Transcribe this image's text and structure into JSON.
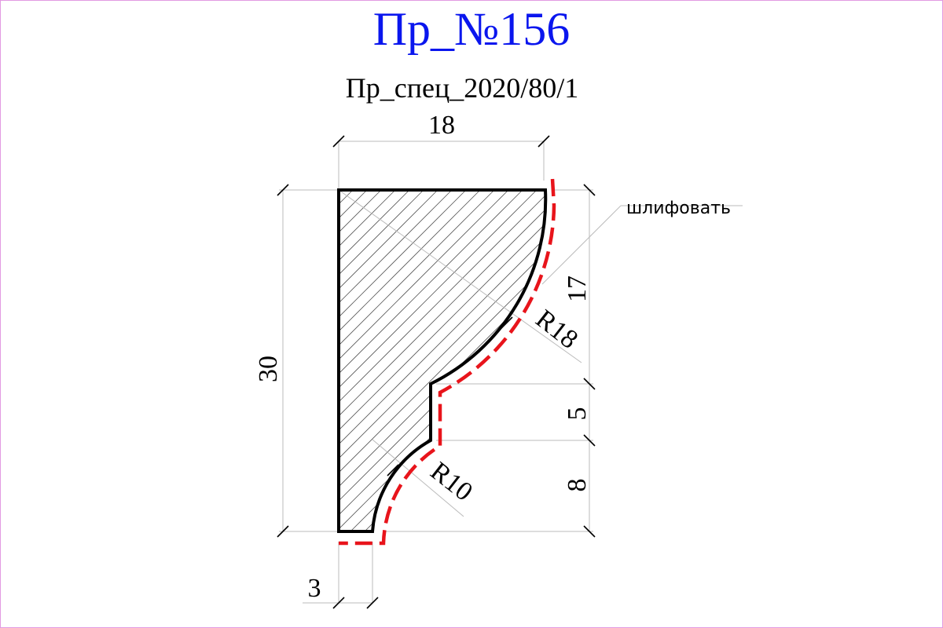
{
  "title": "Пр_№156",
  "subtitle": "Пр_спец_2020/80/1",
  "dimensions": {
    "width_top": "18",
    "height_total": "30",
    "seg_top": "17",
    "seg_mid": "5",
    "seg_bottom": "8",
    "bottom_offset": "3"
  },
  "radii": {
    "large": "R18",
    "small": "R10"
  },
  "note": "шлифовать",
  "colors": {
    "title": "#0a16ee",
    "sanding_line": "#e8141b",
    "frame": "#e29ae2"
  }
}
